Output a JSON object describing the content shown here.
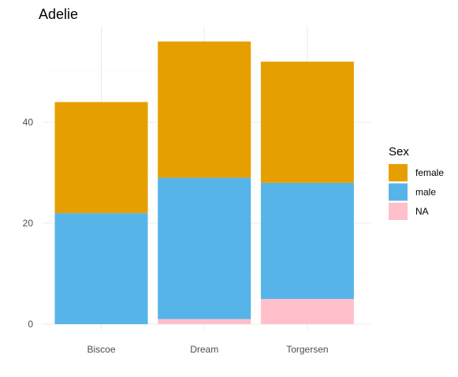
{
  "chart_data": {
    "type": "bar",
    "stacked": true,
    "title": "Adelie",
    "xlabel": "",
    "ylabel": "",
    "categories": [
      "Biscoe",
      "Dream",
      "Torgersen"
    ],
    "series": [
      {
        "name": "NA",
        "values": [
          0,
          1,
          5
        ],
        "color": "#FFC0CB"
      },
      {
        "name": "male",
        "values": [
          22,
          28,
          23
        ],
        "color": "#56B4E9"
      },
      {
        "name": "female",
        "values": [
          22,
          27,
          24
        ],
        "color": "#E69F00"
      }
    ],
    "y_ticks": [
      "0",
      "20",
      "40"
    ],
    "ylim": [
      0,
      56
    ],
    "grid": true,
    "legend": {
      "title": "Sex",
      "position": "right",
      "entries": [
        "female",
        "male",
        "NA"
      ]
    }
  }
}
